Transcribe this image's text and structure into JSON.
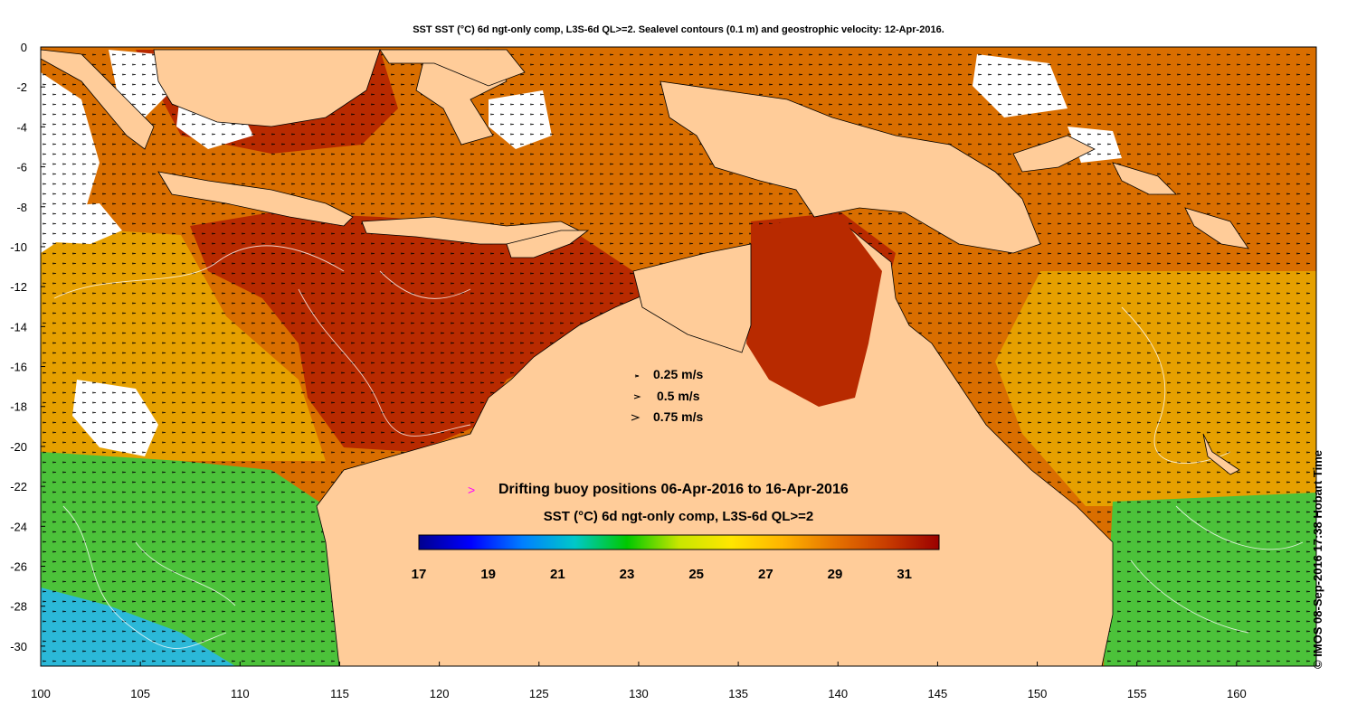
{
  "title": "SST SST (°C) 6d ngt-only comp, L3S-6d QL>=2. Sealevel contours (0.1 m) and geostrophic velocity: 12-Apr-2016.",
  "credit": "© IMOS 08-Sep-2016 17:38 Hobart Time",
  "axes": {
    "lon_ticks": [
      "100",
      "105",
      "110",
      "115",
      "120",
      "125",
      "130",
      "135",
      "140",
      "145",
      "150",
      "155",
      "160"
    ],
    "lat_ticks": [
      "0",
      "-2",
      "-4",
      "-6",
      "-8",
      "-10",
      "-12",
      "-14",
      "-16",
      "-18",
      "-20",
      "-22",
      "-24",
      "-26",
      "-28",
      "-30"
    ]
  },
  "velocity_legend": [
    "0.25 m/s",
    "0.5 m/s",
    "0.75 m/s"
  ],
  "buoy_legend": {
    "marker": ">",
    "text": "Drifting buoy positions 06-Apr-2016 to 16-Apr-2016",
    "marker_color": "#ff00ff"
  },
  "colorbar": {
    "label": "SST (°C) 6d ngt-only comp, L3S-6d QL>=2",
    "ticks": [
      "17",
      "19",
      "21",
      "23",
      "25",
      "27",
      "29",
      "31"
    ],
    "colors": [
      "#00008f",
      "#0000ff",
      "#0080ff",
      "#00c8c8",
      "#00c800",
      "#c8e600",
      "#ffe600",
      "#ffb400",
      "#e67300",
      "#c83c00",
      "#9b0000"
    ]
  },
  "colors": {
    "land": "#ffcc99",
    "sst_hot": "#b82a00",
    "sst_warm": "#d96e00",
    "sst_mild": "#e6a000",
    "sst_cool": "#4cc23a",
    "sst_cold": "#2bb8d8",
    "cloud": "#ffffff"
  }
}
